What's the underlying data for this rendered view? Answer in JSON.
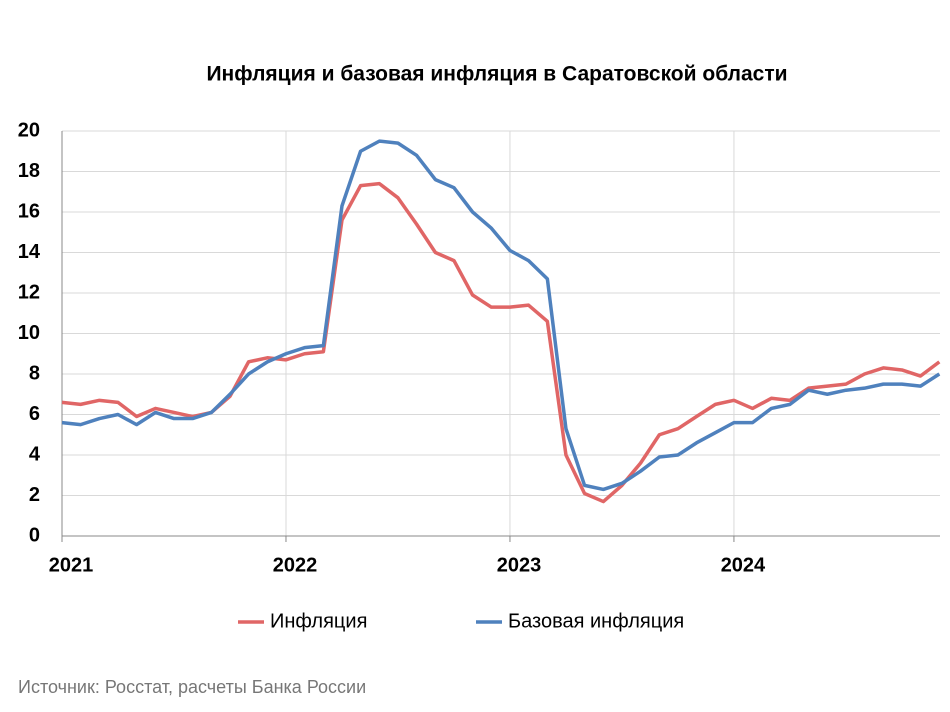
{
  "chart_data": {
    "type": "line",
    "title": "Инфляция и базовая инфляция в Саратовской области",
    "source": "Источник: Росстат, расчеты Банка России",
    "x": [
      2021,
      2021.083,
      2021.167,
      2021.25,
      2021.333,
      2021.417,
      2021.5,
      2021.583,
      2021.667,
      2021.75,
      2021.833,
      2021.917,
      2022,
      2022.083,
      2022.167,
      2022.25,
      2022.333,
      2022.417,
      2022.5,
      2022.583,
      2022.667,
      2022.75,
      2022.833,
      2022.917,
      2023,
      2023.083,
      2023.167,
      2023.25,
      2023.333,
      2023.417,
      2023.5,
      2023.583,
      2023.667,
      2023.75,
      2023.833,
      2023.917,
      2024,
      2024.083,
      2024.167,
      2024.25,
      2024.333,
      2024.417,
      2024.5,
      2024.583,
      2024.667,
      2024.75,
      2024.833,
      2024.917
    ],
    "series": [
      {
        "name": "Инфляция",
        "color": "#e06666",
        "values": [
          6.6,
          6.5,
          6.7,
          6.6,
          5.9,
          6.3,
          6.1,
          5.9,
          6.1,
          6.9,
          8.6,
          8.8,
          8.7,
          9.0,
          9.1,
          15.6,
          17.3,
          17.4,
          16.7,
          15.4,
          14.0,
          13.6,
          11.9,
          11.3,
          11.3,
          11.4,
          10.6,
          4.0,
          2.1,
          1.7,
          2.5,
          3.6,
          5.0,
          5.3,
          5.9,
          6.5,
          6.7,
          6.3,
          6.8,
          6.7,
          7.3,
          7.4,
          7.5,
          8.0,
          8.3,
          8.2,
          7.9,
          8.6
        ]
      },
      {
        "name": "Базовая инфляция",
        "color": "#4f81bd",
        "values": [
          5.6,
          5.5,
          5.8,
          6.0,
          5.5,
          6.1,
          5.8,
          5.8,
          6.1,
          7.0,
          8.0,
          8.6,
          9.0,
          9.3,
          9.4,
          16.3,
          19.0,
          19.5,
          19.4,
          18.8,
          17.6,
          17.2,
          16.0,
          15.2,
          14.1,
          13.6,
          12.7,
          5.3,
          2.5,
          2.3,
          2.6,
          3.2,
          3.9,
          4.0,
          4.6,
          5.1,
          5.6,
          5.6,
          6.3,
          6.5,
          7.2,
          7.0,
          7.2,
          7.3,
          7.5,
          7.5,
          7.4,
          8.0
        ]
      }
    ],
    "xlim": [
      2021,
      2024.92
    ],
    "xticks": [
      2021,
      2022,
      2023,
      2024
    ],
    "ylim": [
      0,
      20
    ],
    "yticks": [
      0,
      2,
      4,
      6,
      8,
      10,
      12,
      14,
      16,
      18,
      20
    ],
    "grid": true
  }
}
